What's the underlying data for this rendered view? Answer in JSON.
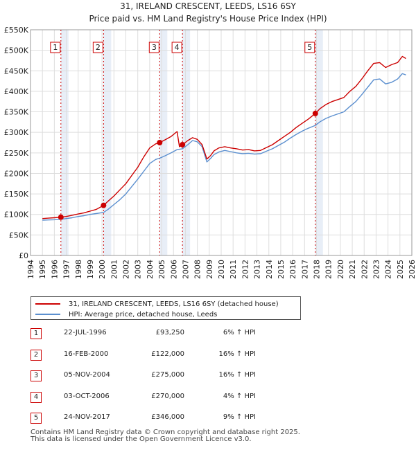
{
  "chart_data": {
    "type": "line",
    "title": "31, IRELAND CRESCENT, LEEDS, LS16 6SY",
    "subtitle": "Price paid vs. HM Land Registry's House Price Index (HPI)",
    "xlim": [
      1994,
      2026
    ],
    "ylim": [
      0,
      550000
    ],
    "x_ticks": [
      "1994",
      "1995",
      "1996",
      "1997",
      "1998",
      "1999",
      "2000",
      "2001",
      "2002",
      "2003",
      "2004",
      "2005",
      "2006",
      "2007",
      "2008",
      "2009",
      "2010",
      "2011",
      "2012",
      "2013",
      "2014",
      "2015",
      "2016",
      "2017",
      "2018",
      "2019",
      "2020",
      "2021",
      "2022",
      "2023",
      "2024",
      "2025",
      "2026"
    ],
    "y_ticks": [
      {
        "value": 0,
        "label": "£0"
      },
      {
        "value": 50000,
        "label": "£50K"
      },
      {
        "value": 100000,
        "label": "£100K"
      },
      {
        "value": 150000,
        "label": "£150K"
      },
      {
        "value": 200000,
        "label": "£200K"
      },
      {
        "value": 250000,
        "label": "£250K"
      },
      {
        "value": 300000,
        "label": "£300K"
      },
      {
        "value": 350000,
        "label": "£350K"
      },
      {
        "value": 400000,
        "label": "£400K"
      },
      {
        "value": 450000,
        "label": "£450K"
      },
      {
        "value": 500000,
        "label": "£500K"
      },
      {
        "value": 550000,
        "label": "£550K"
      }
    ],
    "series": [
      {
        "name": "31, IRELAND CRESCENT, LEEDS, LS16 6SY (detached house)",
        "color": "#cc0000",
        "x": [
          1995.0,
          1995.5,
          1996.0,
          1996.55,
          1997.0,
          1997.5,
          1998.0,
          1998.5,
          1999.0,
          1999.5,
          2000.13,
          2000.5,
          2001.0,
          2001.5,
          2002.0,
          2002.5,
          2003.0,
          2003.5,
          2004.0,
          2004.5,
          2004.84,
          2005.3,
          2005.8,
          2006.3,
          2006.5,
          2006.75,
          2007.2,
          2007.6,
          2008.0,
          2008.4,
          2008.8,
          2009.1,
          2009.4,
          2009.8,
          2010.3,
          2010.8,
          2011.3,
          2011.8,
          2012.3,
          2012.8,
          2013.3,
          2013.8,
          2014.3,
          2014.8,
          2015.3,
          2015.8,
          2016.3,
          2016.8,
          2017.3,
          2017.9,
          2018.3,
          2018.8,
          2019.3,
          2019.8,
          2020.3,
          2020.8,
          2021.3,
          2021.8,
          2022.3,
          2022.8,
          2023.3,
          2023.8,
          2024.3,
          2024.8,
          2025.2,
          2025.5
        ],
        "values": [
          90000,
          91000,
          92000,
          93250,
          95000,
          98000,
          101000,
          104000,
          108000,
          112000,
          122000,
          132000,
          145000,
          160000,
          175000,
          195000,
          215000,
          240000,
          262000,
          272000,
          275000,
          282000,
          290000,
          302000,
          265000,
          270000,
          280000,
          287000,
          283000,
          270000,
          235000,
          243000,
          255000,
          262000,
          265000,
          262000,
          260000,
          257000,
          258000,
          255000,
          256000,
          263000,
          270000,
          280000,
          290000,
          300000,
          312000,
          322000,
          332000,
          346000,
          358000,
          368000,
          375000,
          380000,
          385000,
          400000,
          412000,
          430000,
          450000,
          468000,
          470000,
          458000,
          465000,
          470000,
          485000,
          480000
        ]
      },
      {
        "name": "HPI: Average price, detached house, Leeds",
        "color": "#5b8fcf",
        "x": [
          1995.0,
          1995.5,
          1996.0,
          1996.55,
          1997.0,
          1997.5,
          1998.0,
          1998.5,
          1999.0,
          1999.5,
          2000.13,
          2000.5,
          2001.0,
          2001.5,
          2002.0,
          2002.5,
          2003.0,
          2003.5,
          2004.0,
          2004.5,
          2004.84,
          2005.3,
          2005.8,
          2006.3,
          2006.75,
          2007.2,
          2007.6,
          2008.0,
          2008.4,
          2008.8,
          2009.1,
          2009.4,
          2009.8,
          2010.3,
          2010.8,
          2011.3,
          2011.8,
          2012.3,
          2012.8,
          2013.3,
          2013.8,
          2014.3,
          2014.8,
          2015.3,
          2015.8,
          2016.3,
          2016.8,
          2017.3,
          2017.9,
          2018.3,
          2018.8,
          2019.3,
          2019.8,
          2020.3,
          2020.8,
          2021.3,
          2021.8,
          2022.3,
          2022.8,
          2023.3,
          2023.8,
          2024.3,
          2024.8,
          2025.2,
          2025.5
        ],
        "values": [
          86000,
          86500,
          87000,
          88000,
          90000,
          92000,
          95000,
          97000,
          100000,
          102000,
          105000,
          112000,
          124000,
          136000,
          150000,
          168000,
          186000,
          205000,
          224000,
          234000,
          237000,
          243000,
          250000,
          258000,
          260000,
          270000,
          280000,
          277000,
          265000,
          228000,
          236000,
          246000,
          252000,
          256000,
          253000,
          250000,
          248000,
          249000,
          247000,
          248000,
          254000,
          260000,
          268000,
          276000,
          286000,
          295000,
          303000,
          310000,
          317000,
          326000,
          334000,
          340000,
          345000,
          350000,
          363000,
          375000,
          392000,
          410000,
          428000,
          430000,
          418000,
          422000,
          430000,
          443000,
          440000
        ]
      }
    ],
    "sales": [
      {
        "label": "1",
        "date": "22-JUL-1996",
        "year": 1996.55,
        "price": 93250,
        "price_text": "£93,250",
        "hpi": "6% ↑ HPI"
      },
      {
        "label": "2",
        "date": "16-FEB-2000",
        "year": 2000.13,
        "price": 122000,
        "price_text": "£122,000",
        "hpi": "16% ↑ HPI"
      },
      {
        "label": "3",
        "date": "05-NOV-2004",
        "year": 2004.84,
        "price": 275000,
        "price_text": "£275,000",
        "hpi": "16% ↑ HPI"
      },
      {
        "label": "4",
        "date": "03-OCT-2006",
        "year": 2006.75,
        "price": 270000,
        "price_text": "£270,000",
        "hpi": "4% ↑ HPI"
      },
      {
        "label": "5",
        "date": "24-NOV-2017",
        "year": 2017.9,
        "price": 346000,
        "price_text": "£346,000",
        "hpi": "9% ↑ HPI"
      }
    ],
    "legend_placement": "below"
  },
  "colors": {
    "grid": "#dddddd",
    "shade": "#e8eef7",
    "sale_marker": "#cc0000",
    "vline": "#cc0000"
  },
  "footer": {
    "line1": "Contains HM Land Registry data © Crown copyright and database right 2025.",
    "line2": "This data is licensed under the Open Government Licence v3.0."
  }
}
